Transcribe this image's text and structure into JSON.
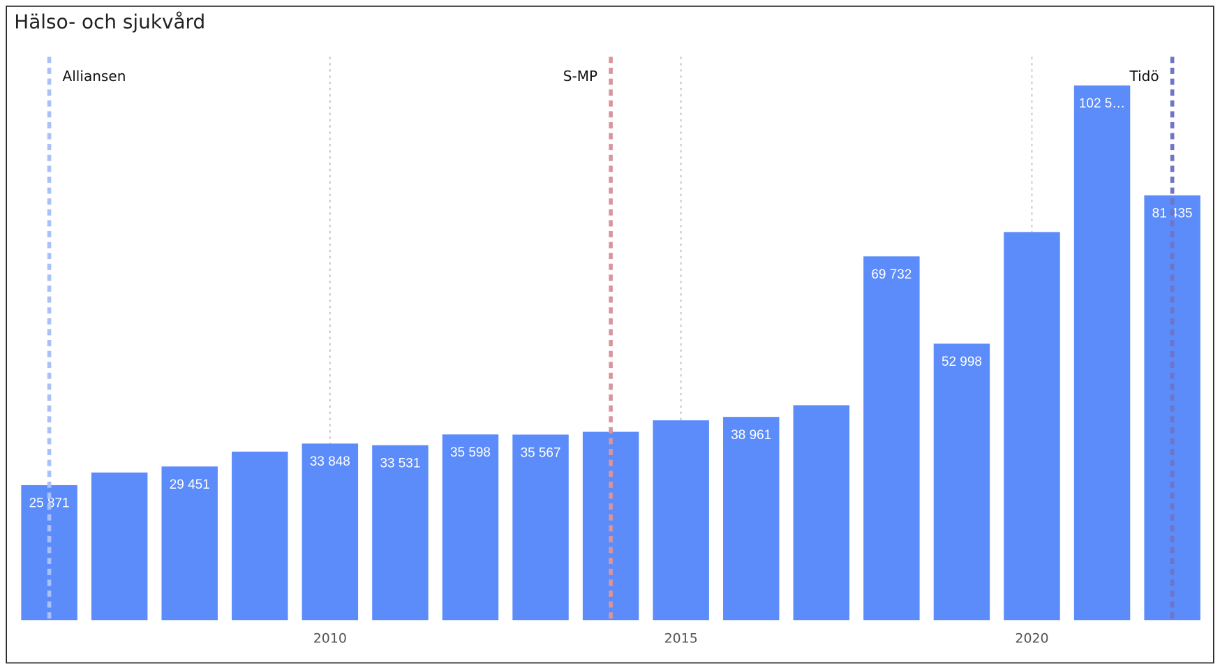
{
  "chart_data": {
    "type": "bar",
    "title": "Hälso- och sjukvård",
    "x": [
      2006,
      2007,
      2008,
      2009,
      2010,
      2011,
      2012,
      2013,
      2014,
      2015,
      2016,
      2017,
      2018,
      2019,
      2020,
      2021,
      2022
    ],
    "values": [
      25871,
      28300,
      29451,
      32300,
      33848,
      33531,
      35598,
      35567,
      36100,
      38300,
      38961,
      41200,
      69732,
      52998,
      74400,
      102500,
      81435
    ],
    "value_labels": [
      "25 871",
      null,
      "29 451",
      null,
      "33 848",
      "33 531",
      "35 598",
      "35 567",
      null,
      null,
      "38 961",
      null,
      "69 732",
      "52 998",
      null,
      "102 5…",
      "81 435"
    ],
    "color": "#5b8cfa",
    "xlim": [
      2005.5,
      2022.5
    ],
    "xticks": [
      2010,
      2015,
      2020
    ],
    "ylim": [
      0,
      108000
    ],
    "grid": true,
    "annotations": [
      {
        "label": "Alliansen",
        "x": 2006,
        "color": "#a9c1f7"
      },
      {
        "label": "S-MP",
        "x": 2014,
        "color": "#d9959d"
      },
      {
        "label": "Tidö",
        "x": 2022,
        "color": "#6f74c4"
      }
    ]
  }
}
